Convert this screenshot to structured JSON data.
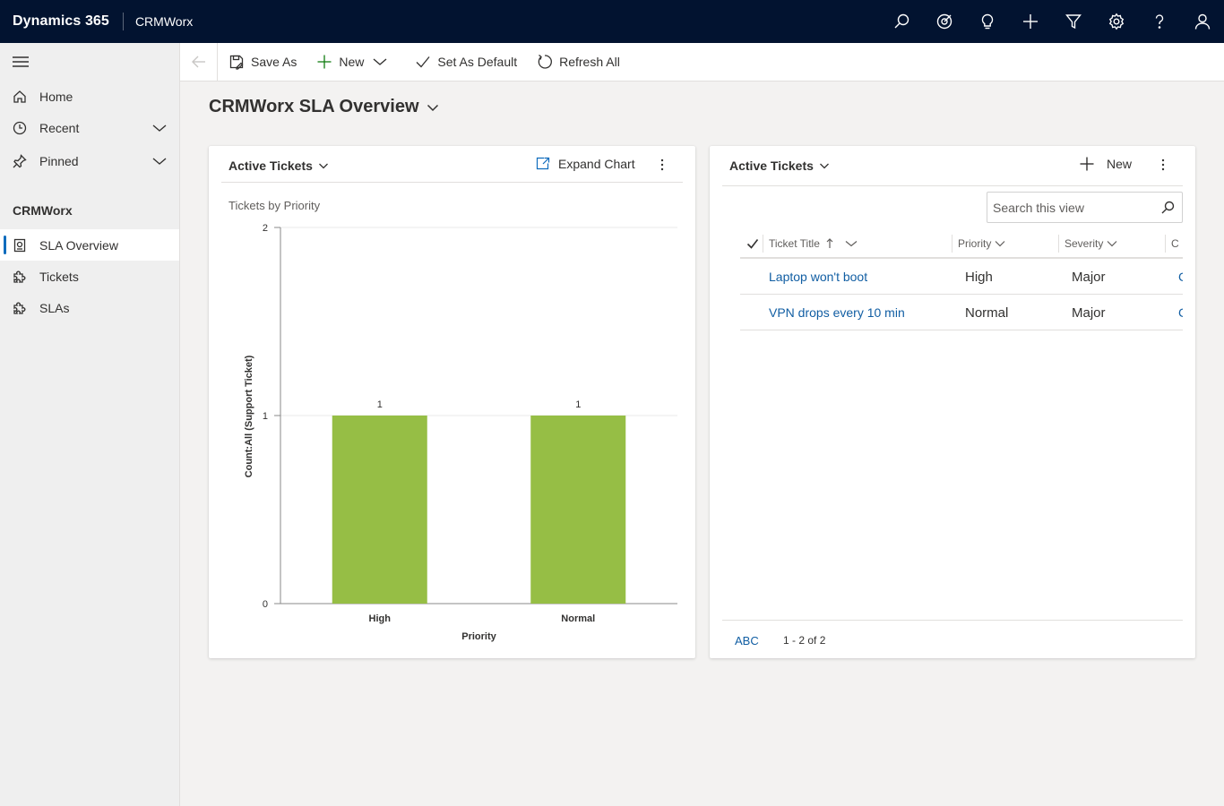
{
  "header": {
    "brand": "Dynamics 365",
    "app_name": "CRMWorx",
    "icons": [
      "search-icon",
      "target-icon",
      "lightbulb-icon",
      "plus-icon",
      "filter-icon",
      "gear-icon",
      "help-icon",
      "user-icon"
    ]
  },
  "sidebar": {
    "items": [
      {
        "label": "Home",
        "icon": "home-icon"
      },
      {
        "label": "Recent",
        "icon": "clock-icon"
      },
      {
        "label": "Pinned",
        "icon": "pin-icon"
      }
    ],
    "section_title": "CRMWorx",
    "section_items": [
      {
        "label": "SLA Overview",
        "icon": "dashboard-icon",
        "active": true
      },
      {
        "label": "Tickets",
        "icon": "puzzle-icon"
      },
      {
        "label": "SLAs",
        "icon": "puzzle-icon"
      }
    ]
  },
  "toolbar": {
    "save_as": "Save As",
    "new": "New",
    "set_default": "Set As Default",
    "refresh_all": "Refresh All"
  },
  "page": {
    "title": "CRMWorx SLA Overview"
  },
  "chart_card": {
    "view_name": "Active Tickets",
    "expand_label": "Expand Chart"
  },
  "chart_data": {
    "type": "bar",
    "title": "Tickets by Priority",
    "categories": [
      "High",
      "Normal"
    ],
    "values": [
      1,
      1
    ],
    "data_labels": [
      "1",
      "1"
    ],
    "xlabel": "Priority",
    "ylabel": "Count:All (Support Ticket)",
    "ylim": [
      0,
      2
    ],
    "yticks": [
      0,
      1,
      2
    ],
    "bar_color": "#96be45",
    "grid": true
  },
  "list_card": {
    "view_name": "Active Tickets",
    "new_label": "New",
    "search_placeholder": "Search this view",
    "columns": [
      "Ticket Title",
      "Priority",
      "Severity",
      "C"
    ],
    "rows": [
      {
        "title": "Laptop won't boot",
        "priority": "High",
        "severity": "Major",
        "extra": "C"
      },
      {
        "title": "VPN drops every 10 min",
        "priority": "Normal",
        "severity": "Major",
        "extra": "C"
      }
    ],
    "footer_abc": "ABC",
    "footer_count": "1 - 2 of 2"
  },
  "colors": {
    "header_bg": "#021330",
    "accent": "#0f6cbd",
    "link": "#115ea3",
    "bar": "#96be45"
  }
}
